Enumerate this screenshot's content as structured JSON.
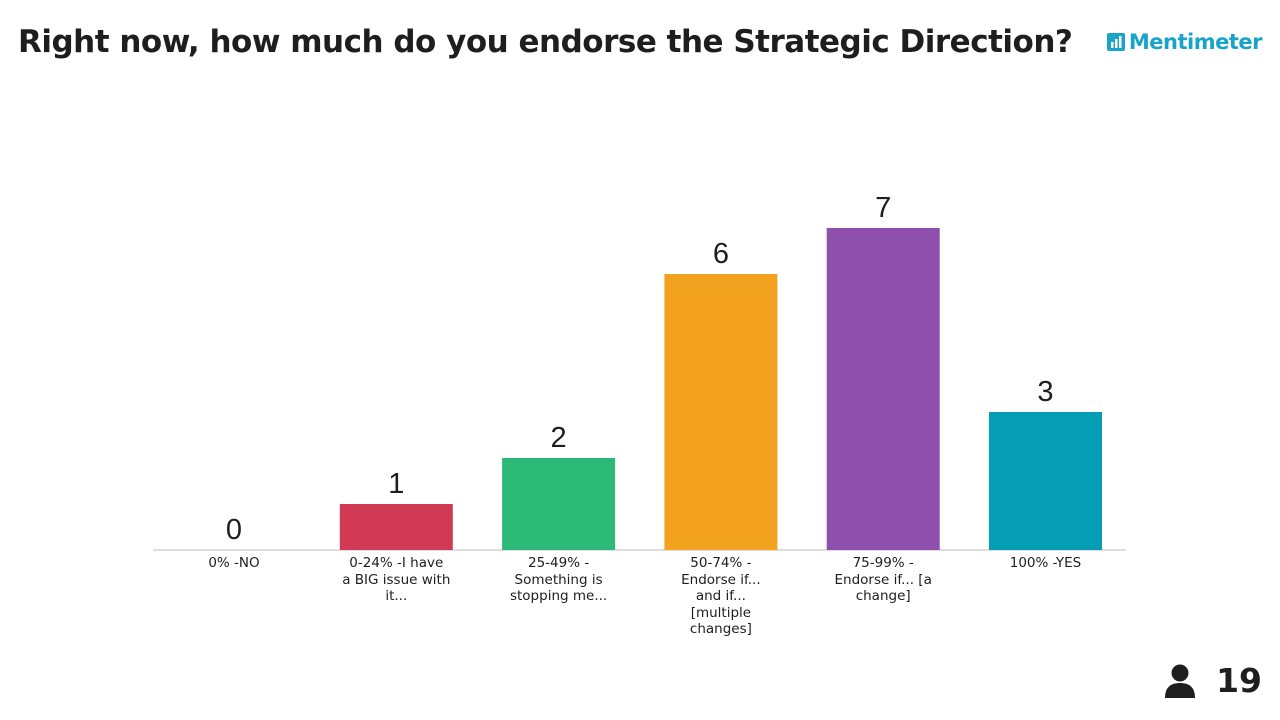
{
  "header": {
    "title": "Right now, how much do you endorse the Strategic Direction?",
    "brand_name": "Mentimeter",
    "brand_color": "#1aa3c8",
    "brand_icon": "bar-chart-logo-icon"
  },
  "footer": {
    "participant_icon": "person-icon",
    "participant_count": "19"
  },
  "chart_data": {
    "type": "bar",
    "title": "Right now, how much do you endorse the Strategic Direction?",
    "categories": [
      "0% -NO",
      "0-24% -I have a BIG issue with it...",
      "25-49% - Something is stopping me...",
      "50-74% - Endorse if... and if... [multiple changes]",
      "75-99% - Endorse if... [a change]",
      "100% -YES"
    ],
    "category_label_lines": [
      [
        "0% -NO"
      ],
      [
        "0-24% -I have",
        "a BIG issue with",
        "it..."
      ],
      [
        "25-49% -",
        "Something is",
        "stopping me..."
      ],
      [
        "50-74% -",
        "Endorse if...",
        "and if...",
        "[multiple",
        "changes]"
      ],
      [
        "75-99% -",
        "Endorse if... [a",
        "change]"
      ],
      [
        "100% -YES"
      ]
    ],
    "values": [
      0,
      1,
      2,
      6,
      7,
      3
    ],
    "colors": [
      "#d13a55",
      "#d13a55",
      "#2db977",
      "#f2a21f",
      "#8e4fad",
      "#059cb5"
    ],
    "xlabel": "",
    "ylabel": "",
    "ylim": [
      0,
      7
    ],
    "grid": false,
    "legend": "none",
    "data_labels": true
  }
}
